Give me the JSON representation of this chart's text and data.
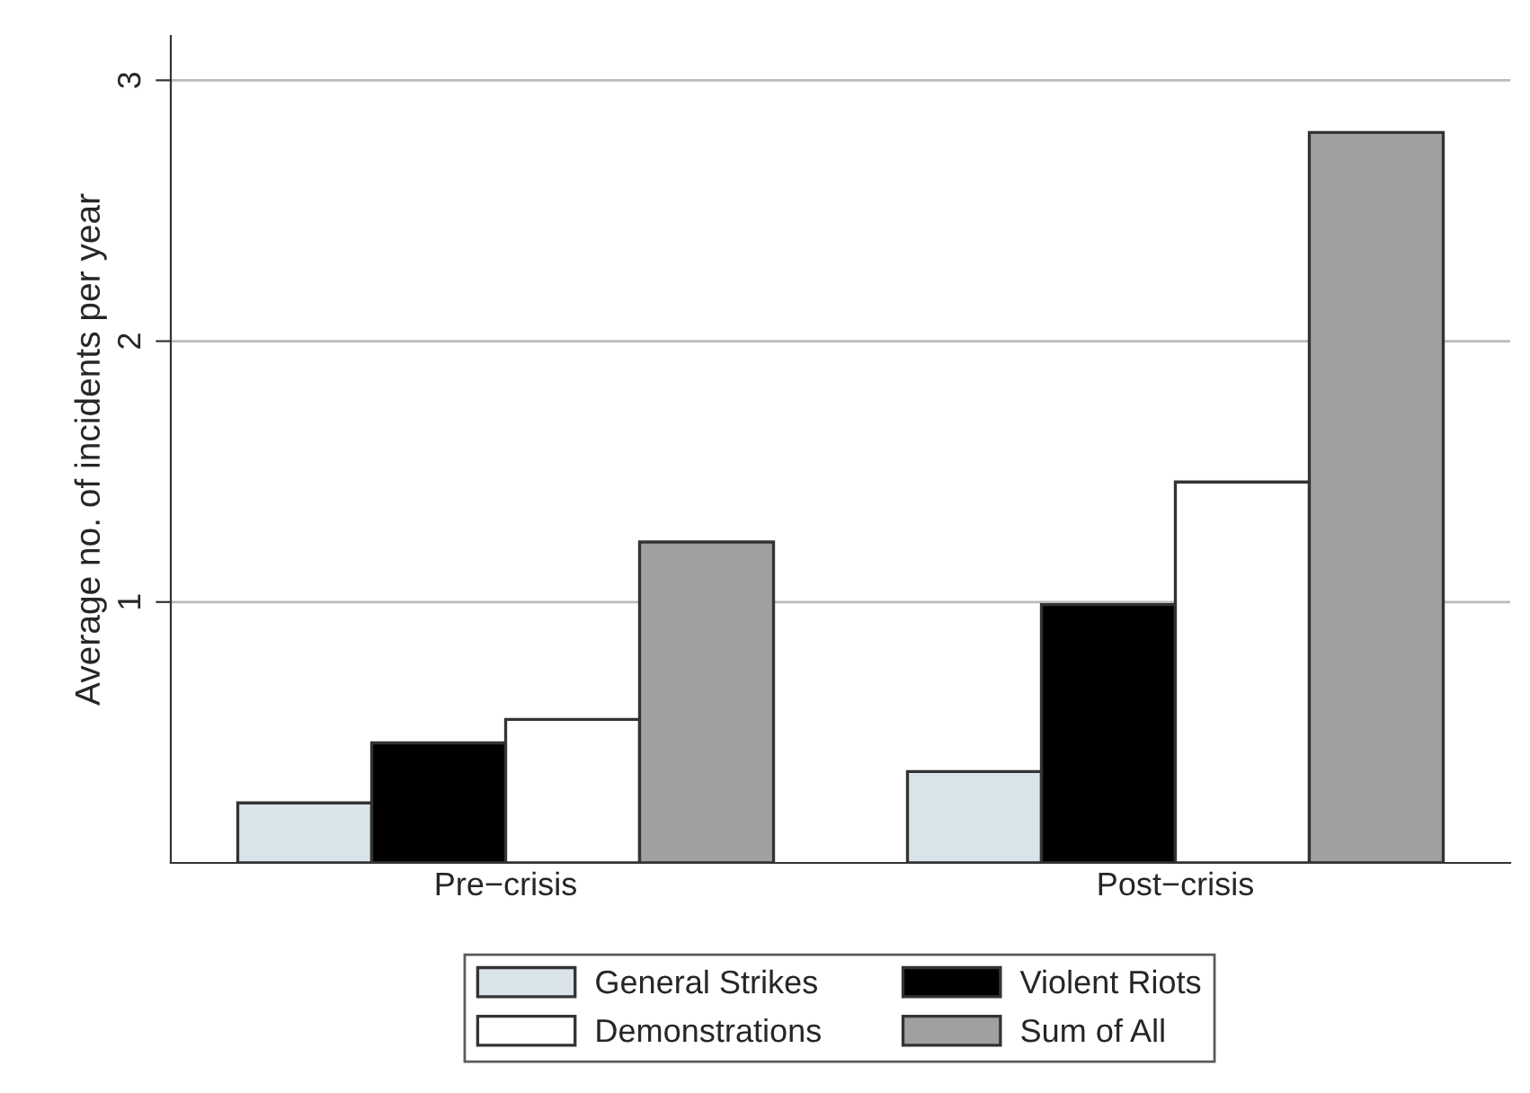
{
  "chart_data": {
    "type": "bar",
    "ylabel": "Average no. of incidents per year",
    "categories": [
      "Pre−crisis",
      "Post−crisis"
    ],
    "series": [
      {
        "name": "General Strikes",
        "color": "#d9e4ea",
        "values": [
          0.23,
          0.35
        ]
      },
      {
        "name": "Violent Riots",
        "color": "#000000",
        "values": [
          0.46,
          0.99
        ]
      },
      {
        "name": "Demonstrations",
        "color": "#ffffff",
        "values": [
          0.55,
          1.46
        ]
      },
      {
        "name": "Sum of All",
        "color": "#a0a0a0",
        "values": [
          1.23,
          2.8
        ]
      }
    ],
    "ylim": [
      0,
      3.17
    ],
    "yticks": [
      1,
      2,
      3
    ],
    "grid": "y",
    "legend": "bottom"
  }
}
